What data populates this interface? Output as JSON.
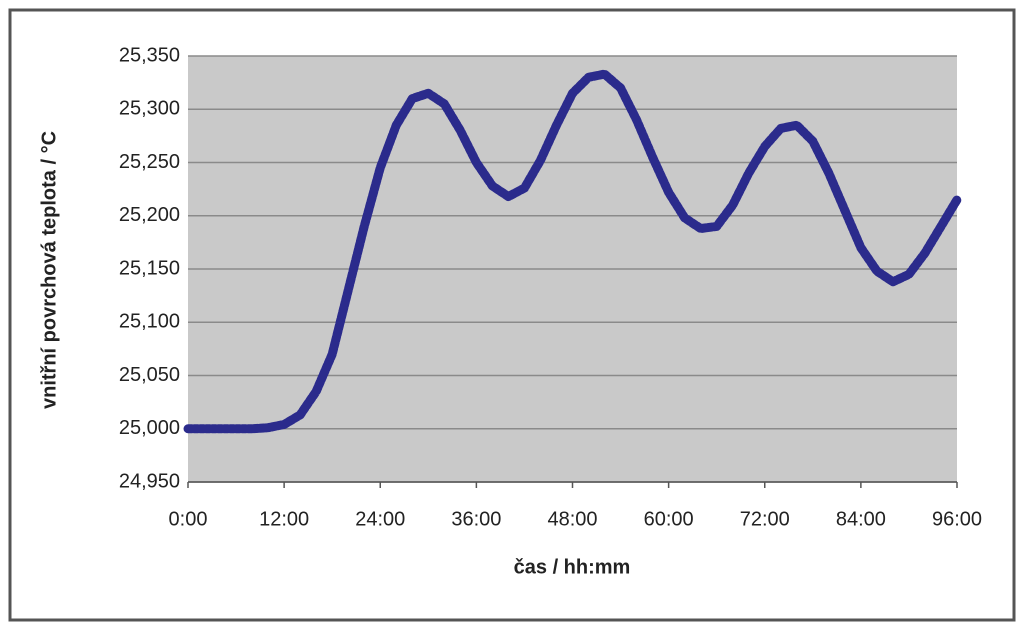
{
  "chart_data": {
    "type": "line",
    "x_label": "čas / hh:mm",
    "y_label": "vnitřní povrchová teplota / °C",
    "x": [
      0,
      2,
      4,
      6,
      8,
      10,
      12,
      14,
      16,
      18,
      20,
      22,
      24,
      26,
      28,
      30,
      32,
      34,
      36,
      38,
      40,
      42,
      44,
      46,
      48,
      50,
      52,
      54,
      56,
      58,
      60,
      62,
      64,
      66,
      68,
      70,
      72,
      74,
      76,
      78,
      80,
      82,
      84,
      86,
      88,
      90,
      92,
      94,
      96
    ],
    "series": [
      {
        "color": "#2b2b8c",
        "values": [
          25.0,
          25.0,
          25.0,
          25.0,
          25.0,
          25.001,
          25.004,
          25.013,
          25.035,
          25.07,
          25.13,
          25.19,
          25.245,
          25.285,
          25.31,
          25.315,
          25.305,
          25.28,
          25.25,
          25.228,
          25.218,
          25.226,
          25.252,
          25.285,
          25.315,
          25.33,
          25.333,
          25.32,
          25.29,
          25.255,
          25.222,
          25.198,
          25.188,
          25.19,
          25.21,
          25.24,
          25.265,
          25.282,
          25.285,
          25.27,
          25.24,
          25.205,
          25.17,
          25.148,
          25.138,
          25.145,
          25.165,
          25.19,
          25.215
        ]
      }
    ],
    "xlim": [
      0,
      96
    ],
    "xticks": [
      {
        "value": 0,
        "label": "0:00"
      },
      {
        "value": 12,
        "label": "12:00"
      },
      {
        "value": 24,
        "label": "24:00"
      },
      {
        "value": 36,
        "label": "36:00"
      },
      {
        "value": 48,
        "label": "48:00"
      },
      {
        "value": 60,
        "label": "60:00"
      },
      {
        "value": 72,
        "label": "72:00"
      },
      {
        "value": 84,
        "label": "84:00"
      },
      {
        "value": 96,
        "label": "96:00"
      }
    ],
    "ylim": [
      24.95,
      25.35
    ],
    "yticks": [
      {
        "value": 24.95,
        "label": "24,950"
      },
      {
        "value": 25.0,
        "label": "25,000"
      },
      {
        "value": 25.05,
        "label": "25,050"
      },
      {
        "value": 25.1,
        "label": "25,100"
      },
      {
        "value": 25.15,
        "label": "25,150"
      },
      {
        "value": 25.2,
        "label": "25,200"
      },
      {
        "value": 25.25,
        "label": "25,250"
      },
      {
        "value": 25.3,
        "label": "25,300"
      },
      {
        "value": 25.35,
        "label": "25,350"
      }
    ],
    "grid": true
  }
}
